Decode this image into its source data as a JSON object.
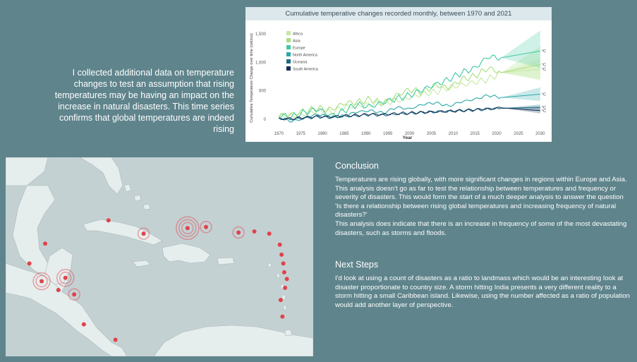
{
  "intro": {
    "text": "I collected additional data on temperature changes to test an assumption that rising temperatures may be having an impact on the increase in natural disasters. This time series confirms that global temperatures are indeed rising"
  },
  "chart_data": {
    "type": "line",
    "title": "Cumulative temperative changes recorded monthly, between 1970 and 2021",
    "xlabel": "Year",
    "ylabel": "Cumulative Temperature Change over time (celcius)",
    "xlim": [
      1968,
      2031
    ],
    "ylim": [
      -200,
      1650
    ],
    "x_ticks": [
      1970,
      1975,
      1980,
      1985,
      1990,
      1995,
      2000,
      2005,
      2010,
      2015,
      2020,
      2025,
      2030
    ],
    "y_ticks": [
      0,
      500,
      1000,
      1500
    ],
    "y_tick_labels": [
      "0",
      "500",
      "1,000",
      "1,500"
    ],
    "forecast_start": 2021,
    "forecast_end": 2030,
    "end_label": "°C",
    "legend_position": "top-left",
    "grid": false,
    "series": [
      {
        "name": "Africa",
        "color": "#c5e8a3",
        "x": [
          1970,
          1973,
          1976,
          1979,
          1982,
          1985,
          1988,
          1991,
          1994,
          1997,
          2000,
          2003,
          2006,
          2009,
          2012,
          2015,
          2018,
          2021
        ],
        "y": [
          40,
          60,
          90,
          150,
          120,
          210,
          240,
          260,
          290,
          330,
          380,
          440,
          480,
          560,
          600,
          650,
          700,
          820
        ],
        "forecast_end_value": 880,
        "band": [
          680,
          1060
        ]
      },
      {
        "name": "Asia",
        "color": "#a8df7c",
        "x": [
          1970,
          1973,
          1976,
          1979,
          1982,
          1985,
          1988,
          1991,
          1994,
          1997,
          2000,
          2003,
          2006,
          2009,
          2012,
          2015,
          2018,
          2021
        ],
        "y": [
          60,
          80,
          150,
          190,
          170,
          280,
          300,
          350,
          280,
          420,
          520,
          480,
          600,
          550,
          700,
          760,
          900,
          820
        ],
        "forecast_end_value": 960,
        "band": [
          700,
          1280
        ]
      },
      {
        "name": "Europe",
        "color": "#3ec9a3",
        "x": [
          1970,
          1973,
          1976,
          1979,
          1982,
          1985,
          1988,
          1991,
          1994,
          1997,
          2000,
          2003,
          2006,
          2009,
          2012,
          2015,
          2018,
          2021
        ],
        "y": [
          70,
          40,
          120,
          180,
          60,
          150,
          260,
          220,
          300,
          360,
          420,
          520,
          610,
          700,
          820,
          900,
          1100,
          1080
        ],
        "forecast_end_value": 1200,
        "band": [
          900,
          1560
        ]
      },
      {
        "name": "North America",
        "color": "#2aa8a8",
        "x": [
          1970,
          1973,
          1976,
          1979,
          1982,
          1985,
          1988,
          1991,
          1994,
          1997,
          2000,
          2003,
          2006,
          2009,
          2012,
          2015,
          2018,
          2021
        ],
        "y": [
          30,
          -40,
          20,
          90,
          30,
          60,
          130,
          150,
          110,
          210,
          180,
          260,
          290,
          230,
          310,
          350,
          420,
          380
        ],
        "forecast_end_value": 440,
        "band": [
          320,
          560
        ]
      },
      {
        "name": "Oceania",
        "color": "#1c6b85",
        "x": [
          1970,
          1973,
          1976,
          1979,
          1982,
          1985,
          1988,
          1991,
          1994,
          1997,
          2000,
          2003,
          2006,
          2009,
          2012,
          2015,
          2018,
          2021
        ],
        "y": [
          10,
          0,
          20,
          40,
          30,
          50,
          60,
          80,
          70,
          90,
          100,
          120,
          130,
          140,
          150,
          160,
          180,
          190
        ],
        "forecast_end_value": 210,
        "band": [
          160,
          260
        ]
      },
      {
        "name": "South America",
        "color": "#0f2f55",
        "x": [
          1970,
          1973,
          1976,
          1979,
          1982,
          1985,
          1988,
          1991,
          1994,
          1997,
          2000,
          2003,
          2006,
          2009,
          2012,
          2015,
          2018,
          2021
        ],
        "y": [
          0,
          10,
          30,
          50,
          40,
          60,
          70,
          90,
          80,
          100,
          110,
          120,
          130,
          140,
          150,
          170,
          180,
          200
        ],
        "forecast_end_value": 150,
        "band": [
          100,
          220
        ]
      }
    ]
  },
  "map": {
    "water_color": "#c4d1d3",
    "land_color": "#e6eded",
    "marker_color": "#e0434b",
    "markers": [
      {
        "lon": -72.3,
        "lat": 18.6,
        "rings": 3
      },
      {
        "lon": -70.2,
        "lat": 18.7,
        "rings": 1
      },
      {
        "lon": -66.5,
        "lat": 18.2,
        "rings": 1
      },
      {
        "lon": -77.3,
        "lat": 18.1,
        "rings": 1
      },
      {
        "lon": -88.9,
        "lat": 13.8,
        "rings": 2
      },
      {
        "lon": -86.2,
        "lat": 14.1,
        "rings": 2
      },
      {
        "lon": -90.3,
        "lat": 15.4,
        "rings": 0
      },
      {
        "lon": -88.5,
        "lat": 17.2,
        "rings": 0
      },
      {
        "lon": -87.0,
        "lat": 13.0,
        "rings": 0
      },
      {
        "lon": -85.2,
        "lat": 12.6,
        "rings": 1
      },
      {
        "lon": -84.1,
        "lat": 9.9,
        "rings": 0
      },
      {
        "lon": -80.5,
        "lat": 8.5,
        "rings": 0
      },
      {
        "lon": -81.3,
        "lat": 19.3,
        "rings": 0
      },
      {
        "lon": -63.0,
        "lat": 18.1,
        "rings": 0
      },
      {
        "lon": -61.8,
        "lat": 17.1,
        "rings": 0
      },
      {
        "lon": -61.4,
        "lat": 15.4,
        "rings": 0
      },
      {
        "lon": -61.0,
        "lat": 14.0,
        "rings": 0
      },
      {
        "lon": -61.2,
        "lat": 13.2,
        "rings": 0
      },
      {
        "lon": -61.7,
        "lat": 12.1,
        "rings": 0
      },
      {
        "lon": -61.5,
        "lat": 10.6,
        "rings": 0
      },
      {
        "lon": -61.6,
        "lat": 16.2,
        "rings": 0
      },
      {
        "lon": -61.3,
        "lat": 14.6,
        "rings": 0
      },
      {
        "lon": -64.7,
        "lat": 18.3,
        "rings": 0
      }
    ]
  },
  "conclusion": {
    "heading": "Conclusion",
    "paragraph1": "Temperatures are rising globally, with more significant changes in regions within Europe and Asia. This analysis doesn't go as far to test the relationship between temperatures and frequency or severity of disasters. This would form the start of a much deeper analysis to answer the question 'Is there a relationship between rising global temperatures and increasing frequency of natural disasters?'",
    "paragraph2": "This analysis does indicate that there is an increase in frequency of some of the most devastating disasters, such as storms and floods."
  },
  "next_steps": {
    "heading": "Next Steps",
    "paragraph": "I'd look at using a count of disasters as a ratio to landmass which would be an interesting look at disaster proportionate to country size. A storm hitting India presents a very different reality to a storm hitting a small Caribbean island. Likewise, using the number affected as a ratio of population would add another layer of perspective."
  }
}
